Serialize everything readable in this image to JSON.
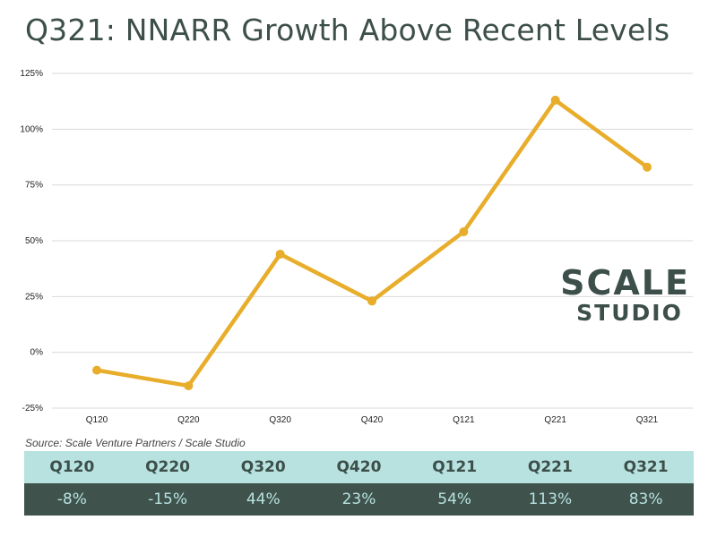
{
  "title": "Q321: NNARR Growth Above Recent Levels",
  "source": "Source: Scale Venture Partners / Scale Studio",
  "logo": {
    "line1": "SCALE",
    "line2": "STUDIO"
  },
  "colors": {
    "line": "#e8ad2a",
    "grid": "#d9d9d9",
    "dark": "#3f524c",
    "light": "#b7e2e0"
  },
  "chart_data": {
    "type": "line",
    "title": "Q321: NNARR Growth Above Recent Levels",
    "xlabel": "",
    "ylabel": "",
    "categories": [
      "Q120",
      "Q220",
      "Q320",
      "Q420",
      "Q121",
      "Q221",
      "Q321"
    ],
    "values": [
      -8,
      -15,
      44,
      23,
      54,
      113,
      83
    ],
    "ylim": [
      -25,
      125
    ],
    "yticks": [
      125,
      100,
      75,
      50,
      25,
      0,
      -25
    ],
    "ytick_labels": [
      "125%",
      "100%",
      "75%",
      "50%",
      "25%",
      "0%",
      "-25%"
    ],
    "grid": true,
    "legend": "none"
  },
  "table": {
    "headers": [
      "Q120",
      "Q220",
      "Q320",
      "Q420",
      "Q121",
      "Q221",
      "Q321"
    ],
    "values": [
      "-8%",
      "-15%",
      "44%",
      "23%",
      "54%",
      "113%",
      "83%"
    ]
  }
}
